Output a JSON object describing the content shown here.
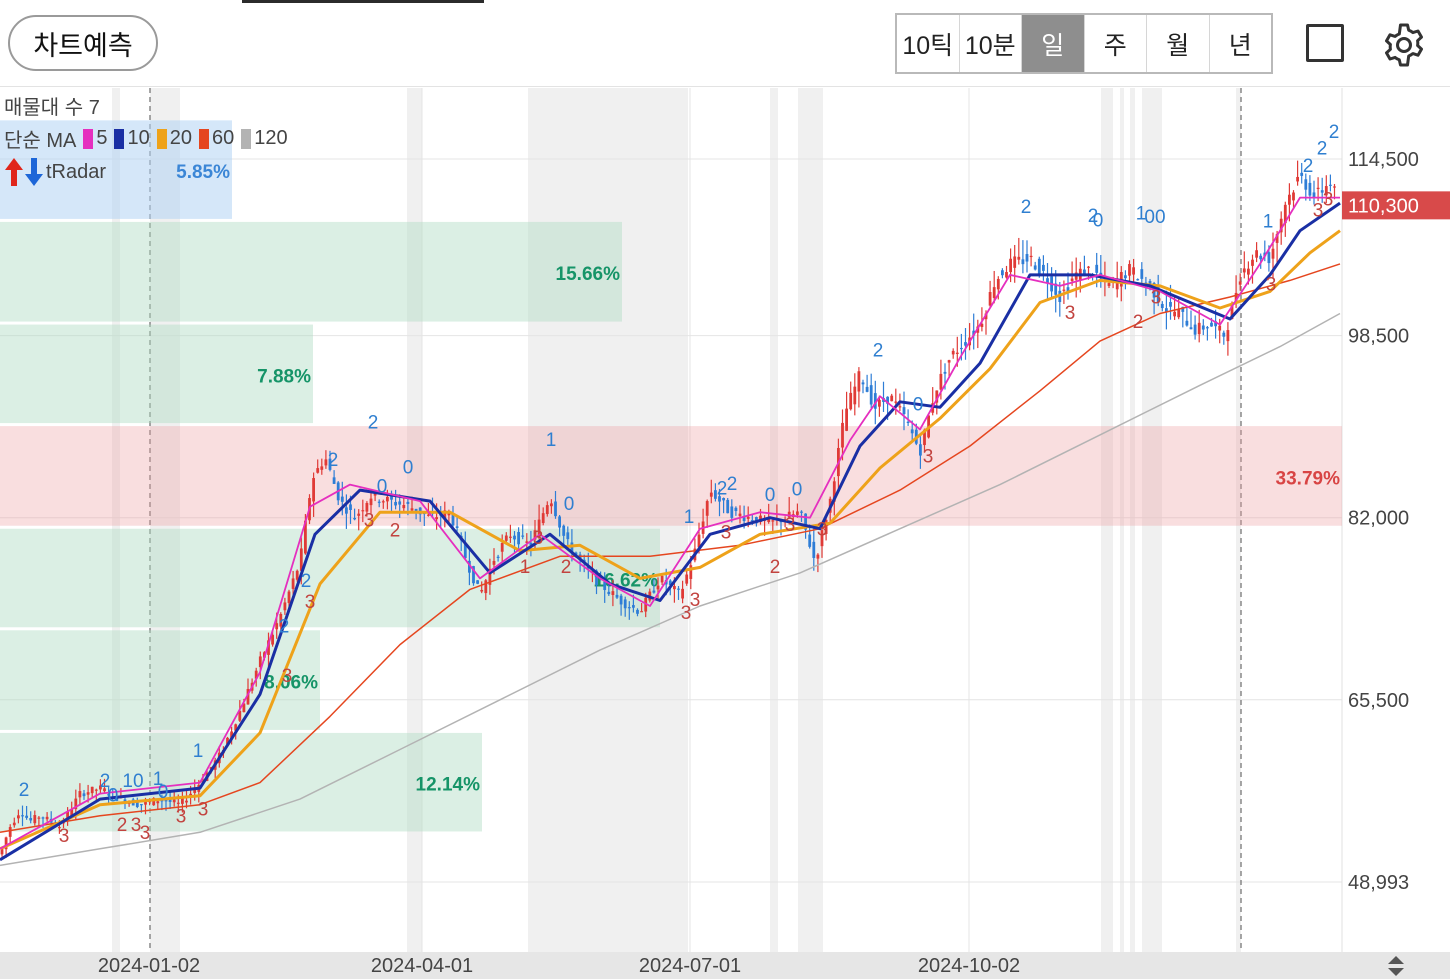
{
  "header": {
    "predict_button": "차트예측",
    "period_tabs": [
      "10틱",
      "10분",
      "일",
      "주",
      "월",
      "년"
    ],
    "active_period": 2,
    "fullscreen_icon": "square-icon",
    "settings_icon": "gear-icon"
  },
  "legend": {
    "volume_profile": "매물대 수 7",
    "ma_label": "단순 MA",
    "ma_periods": [
      "5",
      "10",
      "20",
      "60",
      "120"
    ],
    "ma_colors": [
      "#e52fbf",
      "#1a2fa4",
      "#eea21a",
      "#e5461f",
      "#b3b3b3"
    ],
    "radar_label": "tRadar",
    "radar_up_icon": "red-up-arrow-icon",
    "radar_down_icon": "blue-down-arrow-icon"
  },
  "chart_data": {
    "type": "candlestick",
    "y_ticks": [
      "114,500",
      "98,500",
      "82,000",
      "65,500",
      "48,993"
    ],
    "y_tick_values": [
      114500,
      98500,
      82000,
      65500,
      48993
    ],
    "ylim": [
      42000,
      120000
    ],
    "x_ticks": [
      "2024-01-02",
      "2024-04-01",
      "2024-07-01",
      "2024-10-02"
    ],
    "current_price_label": "110,300",
    "current_price": 110300,
    "current_price_color": "#d84a4a",
    "volume_profile": [
      {
        "low": 108800,
        "high": 118000,
        "label": "5.85%",
        "color": "blue"
      },
      {
        "low": 99500,
        "high": 108800,
        "label": "15.66%",
        "color": "green"
      },
      {
        "low": 90300,
        "high": 99500,
        "label": "7.88%",
        "color": "green"
      },
      {
        "low": 81000,
        "high": 90300,
        "label": "33.79%",
        "color": "red"
      },
      {
        "low": 71800,
        "high": 81000,
        "label": "16.62%",
        "color": "green"
      },
      {
        "low": 62500,
        "high": 71800,
        "label": "8.06%",
        "color": "green"
      },
      {
        "low": 53300,
        "high": 62500,
        "label": "12.14%",
        "color": "green"
      }
    ],
    "price_path": [
      [
        0,
        51500
      ],
      [
        10,
        54000
      ],
      [
        20,
        55500
      ],
      [
        30,
        54500
      ],
      [
        40,
        55000
      ],
      [
        60,
        54000
      ],
      [
        80,
        57000
      ],
      [
        100,
        57500
      ],
      [
        120,
        56500
      ],
      [
        140,
        56000
      ],
      [
        160,
        56500
      ],
      [
        180,
        56000
      ],
      [
        200,
        58000
      ],
      [
        220,
        60500
      ],
      [
        240,
        64500
      ],
      [
        260,
        69000
      ],
      [
        280,
        73000
      ],
      [
        300,
        78000
      ],
      [
        312,
        85500
      ],
      [
        325,
        87500
      ],
      [
        340,
        83500
      ],
      [
        355,
        82000
      ],
      [
        370,
        84000
      ],
      [
        390,
        83500
      ],
      [
        410,
        83000
      ],
      [
        430,
        82000
      ],
      [
        450,
        82500
      ],
      [
        465,
        78500
      ],
      [
        480,
        75000
      ],
      [
        495,
        78500
      ],
      [
        510,
        80500
      ],
      [
        530,
        79500
      ],
      [
        550,
        84000
      ],
      [
        565,
        80000
      ],
      [
        580,
        78000
      ],
      [
        600,
        76000
      ],
      [
        620,
        74500
      ],
      [
        640,
        73500
      ],
      [
        660,
        76500
      ],
      [
        680,
        75000
      ],
      [
        695,
        79000
      ],
      [
        710,
        84500
      ],
      [
        730,
        82500
      ],
      [
        750,
        82000
      ],
      [
        770,
        81500
      ],
      [
        785,
        82000
      ],
      [
        800,
        82500
      ],
      [
        815,
        78000
      ],
      [
        830,
        83500
      ],
      [
        845,
        91500
      ],
      [
        860,
        95000
      ],
      [
        875,
        92000
      ],
      [
        890,
        93000
      ],
      [
        905,
        91000
      ],
      [
        920,
        88000
      ],
      [
        935,
        93500
      ],
      [
        950,
        96500
      ],
      [
        965,
        98000
      ],
      [
        980,
        99500
      ],
      [
        995,
        103500
      ],
      [
        1010,
        105000
      ],
      [
        1030,
        105500
      ],
      [
        1045,
        104000
      ],
      [
        1060,
        102000
      ],
      [
        1075,
        104000
      ],
      [
        1090,
        104500
      ],
      [
        1110,
        103000
      ],
      [
        1130,
        104500
      ],
      [
        1150,
        103000
      ],
      [
        1165,
        101000
      ],
      [
        1180,
        100500
      ],
      [
        1195,
        99000
      ],
      [
        1210,
        99500
      ],
      [
        1225,
        98500
      ],
      [
        1240,
        104000
      ],
      [
        1255,
        106000
      ],
      [
        1270,
        105500
      ],
      [
        1285,
        110500
      ],
      [
        1300,
        113000
      ],
      [
        1315,
        111000
      ],
      [
        1330,
        112500
      ],
      [
        1340,
        110300
      ]
    ],
    "ma_paths": {
      "ma5": [
        [
          0,
          52000
        ],
        [
          100,
          57000
        ],
        [
          200,
          58000
        ],
        [
          260,
          68000
        ],
        [
          310,
          83000
        ],
        [
          350,
          85000
        ],
        [
          420,
          83500
        ],
        [
          480,
          76500
        ],
        [
          540,
          80500
        ],
        [
          600,
          76500
        ],
        [
          650,
          74000
        ],
        [
          700,
          81000
        ],
        [
          760,
          82500
        ],
        [
          810,
          82000
        ],
        [
          850,
          89000
        ],
        [
          880,
          93000
        ],
        [
          920,
          90000
        ],
        [
          960,
          96500
        ],
        [
          1010,
          104000
        ],
        [
          1060,
          103000
        ],
        [
          1100,
          104000
        ],
        [
          1160,
          102500
        ],
        [
          1220,
          99500
        ],
        [
          1260,
          105000
        ],
        [
          1300,
          111000
        ],
        [
          1340,
          111000
        ]
      ],
      "ma10": [
        [
          0,
          51000
        ],
        [
          100,
          56500
        ],
        [
          200,
          57500
        ],
        [
          260,
          66000
        ],
        [
          315,
          80500
        ],
        [
          360,
          84500
        ],
        [
          430,
          83500
        ],
        [
          490,
          77000
        ],
        [
          550,
          80500
        ],
        [
          610,
          76000
        ],
        [
          660,
          74500
        ],
        [
          710,
          80500
        ],
        [
          770,
          82000
        ],
        [
          820,
          81000
        ],
        [
          860,
          88500
        ],
        [
          900,
          92500
        ],
        [
          940,
          92000
        ],
        [
          980,
          96000
        ],
        [
          1030,
          104000
        ],
        [
          1090,
          104000
        ],
        [
          1150,
          103000
        ],
        [
          1230,
          100000
        ],
        [
          1270,
          104000
        ],
        [
          1300,
          108000
        ],
        [
          1340,
          110500
        ]
      ],
      "ma20": [
        [
          0,
          52000
        ],
        [
          100,
          56000
        ],
        [
          200,
          56800
        ],
        [
          260,
          62500
        ],
        [
          320,
          76000
        ],
        [
          380,
          82500
        ],
        [
          450,
          82500
        ],
        [
          520,
          79000
        ],
        [
          580,
          79500
        ],
        [
          640,
          76500
        ],
        [
          700,
          77500
        ],
        [
          760,
          80500
        ],
        [
          830,
          81500
        ],
        [
          880,
          86500
        ],
        [
          940,
          91000
        ],
        [
          990,
          95500
        ],
        [
          1040,
          101500
        ],
        [
          1100,
          103500
        ],
        [
          1160,
          103000
        ],
        [
          1220,
          101000
        ],
        [
          1270,
          102500
        ],
        [
          1310,
          106000
        ],
        [
          1340,
          108000
        ]
      ],
      "ma60": [
        [
          0,
          53500
        ],
        [
          100,
          55000
        ],
        [
          200,
          56000
        ],
        [
          260,
          58000
        ],
        [
          330,
          64000
        ],
        [
          400,
          70500
        ],
        [
          470,
          75500
        ],
        [
          560,
          78500
        ],
        [
          650,
          78500
        ],
        [
          740,
          79500
        ],
        [
          820,
          81000
        ],
        [
          900,
          84500
        ],
        [
          970,
          88500
        ],
        [
          1040,
          93500
        ],
        [
          1100,
          98000
        ],
        [
          1160,
          100500
        ],
        [
          1230,
          102000
        ],
        [
          1290,
          103500
        ],
        [
          1340,
          105000
        ]
      ],
      "ma120": [
        [
          0,
          50500
        ],
        [
          100,
          52000
        ],
        [
          200,
          53500
        ],
        [
          300,
          56500
        ],
        [
          400,
          61000
        ],
        [
          500,
          65500
        ],
        [
          600,
          70000
        ],
        [
          700,
          74000
        ],
        [
          800,
          77000
        ],
        [
          900,
          81000
        ],
        [
          1000,
          85000
        ],
        [
          1100,
          89500
        ],
        [
          1200,
          94000
        ],
        [
          1280,
          97500
        ],
        [
          1340,
          100500
        ]
      ]
    },
    "signal_labels": [
      {
        "t": "2",
        "x": 24,
        "y": 56800,
        "c": "blue"
      },
      {
        "t": "3",
        "x": 64,
        "y": 52600,
        "c": "red"
      },
      {
        "t": "0",
        "x": 113,
        "y": 56300,
        "c": "blue"
      },
      {
        "t": "2",
        "x": 105,
        "y": 57600,
        "c": "blue"
      },
      {
        "t": "10",
        "x": 133,
        "y": 57600,
        "c": "blue"
      },
      {
        "t": "1",
        "x": 158,
        "y": 57800,
        "c": "blue"
      },
      {
        "t": "0",
        "x": 163,
        "y": 56600,
        "c": "blue"
      },
      {
        "t": "2",
        "x": 122,
        "y": 53600,
        "c": "red"
      },
      {
        "t": "3",
        "x": 136,
        "y": 53600,
        "c": "red"
      },
      {
        "t": "3",
        "x": 145,
        "y": 52900,
        "c": "red"
      },
      {
        "t": "3",
        "x": 181,
        "y": 54400,
        "c": "red"
      },
      {
        "t": "3",
        "x": 203,
        "y": 55000,
        "c": "red"
      },
      {
        "t": "1",
        "x": 198,
        "y": 60300,
        "c": "blue"
      },
      {
        "t": "3",
        "x": 287,
        "y": 67100,
        "c": "red"
      },
      {
        "t": "2",
        "x": 284,
        "y": 71600,
        "c": "blue"
      },
      {
        "t": "2",
        "x": 306,
        "y": 75700,
        "c": "blue"
      },
      {
        "t": "3",
        "x": 310,
        "y": 73800,
        "c": "red"
      },
      {
        "t": "2",
        "x": 333,
        "y": 86700,
        "c": "blue"
      },
      {
        "t": "2",
        "x": 373,
        "y": 90100,
        "c": "blue"
      },
      {
        "t": "0",
        "x": 382,
        "y": 84300,
        "c": "blue"
      },
      {
        "t": "0",
        "x": 408,
        "y": 86000,
        "c": "blue"
      },
      {
        "t": "3",
        "x": 369,
        "y": 81200,
        "c": "red"
      },
      {
        "t": "2",
        "x": 395,
        "y": 80300,
        "c": "red"
      },
      {
        "t": "1",
        "x": 551,
        "y": 88500,
        "c": "blue"
      },
      {
        "t": "0",
        "x": 569,
        "y": 82700,
        "c": "blue"
      },
      {
        "t": "3",
        "x": 538,
        "y": 79600,
        "c": "red"
      },
      {
        "t": "1",
        "x": 525,
        "y": 77000,
        "c": "red"
      },
      {
        "t": "2",
        "x": 566,
        "y": 77000,
        "c": "red"
      },
      {
        "t": "1",
        "x": 689,
        "y": 81500,
        "c": "blue"
      },
      {
        "t": "2",
        "x": 722,
        "y": 84100,
        "c": "blue"
      },
      {
        "t": "2",
        "x": 732,
        "y": 84500,
        "c": "blue"
      },
      {
        "t": "0",
        "x": 770,
        "y": 83500,
        "c": "blue"
      },
      {
        "t": "0",
        "x": 797,
        "y": 84000,
        "c": "blue"
      },
      {
        "t": "3",
        "x": 695,
        "y": 74000,
        "c": "red"
      },
      {
        "t": "3",
        "x": 686,
        "y": 72800,
        "c": "red"
      },
      {
        "t": "3",
        "x": 726,
        "y": 80100,
        "c": "red"
      },
      {
        "t": "2",
        "x": 775,
        "y": 77000,
        "c": "red"
      },
      {
        "t": "3",
        "x": 790,
        "y": 80800,
        "c": "red"
      },
      {
        "t": "3",
        "x": 822,
        "y": 80400,
        "c": "red"
      },
      {
        "t": "2",
        "x": 878,
        "y": 96600,
        "c": "blue"
      },
      {
        "t": "0",
        "x": 918,
        "y": 91700,
        "c": "blue"
      },
      {
        "t": "3",
        "x": 928,
        "y": 87000,
        "c": "red"
      },
      {
        "t": "2",
        "x": 1026,
        "y": 109600,
        "c": "blue"
      },
      {
        "t": "2",
        "x": 1093,
        "y": 108800,
        "c": "blue"
      },
      {
        "t": "0",
        "x": 1098,
        "y": 108400,
        "c": "blue"
      },
      {
        "t": "1",
        "x": 1141,
        "y": 109000,
        "c": "blue"
      },
      {
        "t": "00",
        "x": 1155,
        "y": 108700,
        "c": "blue"
      },
      {
        "t": "3",
        "x": 1070,
        "y": 100000,
        "c": "red"
      },
      {
        "t": "3",
        "x": 1156,
        "y": 101400,
        "c": "red"
      },
      {
        "t": "2",
        "x": 1138,
        "y": 99200,
        "c": "red"
      },
      {
        "t": "1",
        "x": 1268,
        "y": 108300,
        "c": "blue"
      },
      {
        "t": "3",
        "x": 1271,
        "y": 102600,
        "c": "red"
      },
      {
        "t": "2",
        "x": 1308,
        "y": 113300,
        "c": "blue"
      },
      {
        "t": "2",
        "x": 1322,
        "y": 114900,
        "c": "blue"
      },
      {
        "t": "2",
        "x": 1334,
        "y": 116400,
        "c": "blue"
      },
      {
        "t": "3",
        "x": 1318,
        "y": 109300,
        "c": "red"
      },
      {
        "t": "3",
        "x": 1328,
        "y": 110300,
        "c": "red"
      }
    ]
  }
}
